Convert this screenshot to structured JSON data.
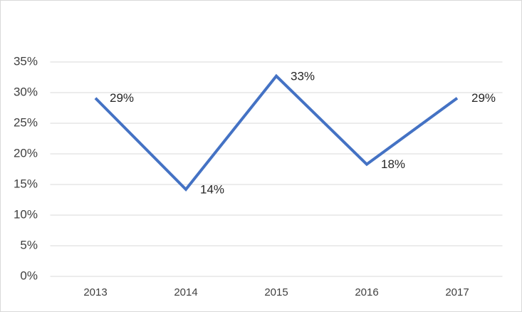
{
  "chart_data": {
    "type": "line",
    "categories": [
      "2013",
      "2014",
      "2015",
      "2016",
      "2017"
    ],
    "series": [
      {
        "color": "#4472c4",
        "values": [
          29.1,
          14.2,
          32.7,
          18.3,
          29.1
        ],
        "value_labels": [
          "29%",
          "14%",
          "33%",
          "18%",
          "29%"
        ]
      }
    ],
    "ylim": [
      0,
      35
    ],
    "yticks": [
      {
        "value": 0,
        "label": "0%"
      },
      {
        "value": 5,
        "label": "5%"
      },
      {
        "value": 10,
        "label": "10%"
      },
      {
        "value": 15,
        "label": "15%"
      },
      {
        "value": 20,
        "label": "20%"
      },
      {
        "value": 25,
        "label": "25%"
      },
      {
        "value": 30,
        "label": "30%"
      },
      {
        "value": 35,
        "label": "35%"
      }
    ],
    "grid": true
  }
}
